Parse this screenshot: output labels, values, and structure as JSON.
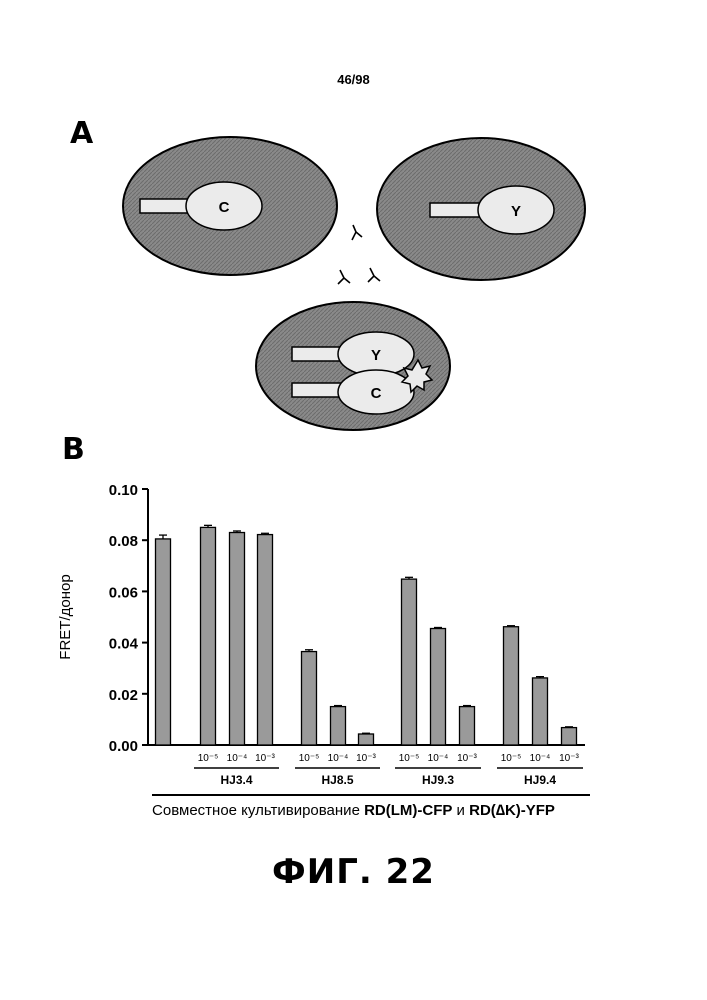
{
  "page_number": "46/98",
  "panel_a": {
    "label": "A",
    "cells": [
      {
        "receptor_label": "C"
      },
      {
        "receptor_label": "Y"
      },
      {
        "receptor_labels": [
          "Y",
          "C"
        ]
      }
    ],
    "colors": {
      "cell_fill": "#8a8a8a",
      "receptor_fill": "#ebebeb"
    }
  },
  "panel_b": {
    "label": "B",
    "caption_prefix": "Совместное культивирование ",
    "caption_part1": "RD(LM)-CFP",
    "caption_and": " и ",
    "caption_part2": "RD(∆K)-YFP"
  },
  "chart_data": {
    "type": "bar",
    "ylabel": "FRET/донор",
    "ylim": [
      0,
      0.1
    ],
    "yticks": [
      "0.00",
      "0.02",
      "0.04",
      "0.06",
      "0.08",
      "0.10"
    ],
    "bars": [
      {
        "value": 0.0805,
        "error": 0.0015,
        "tick": ""
      },
      {
        "value": 0.085,
        "error": 0.0008,
        "tick": "10⁻⁵"
      },
      {
        "value": 0.083,
        "error": 0.0006,
        "tick": "10⁻⁴"
      },
      {
        "value": 0.0822,
        "error": 0.0005,
        "tick": "10⁻³"
      },
      {
        "value": 0.0365,
        "error": 0.0007,
        "tick": "10⁻⁵"
      },
      {
        "value": 0.015,
        "error": 0.0004,
        "tick": "10⁻⁴"
      },
      {
        "value": 0.0043,
        "error": 0.0003,
        "tick": "10⁻³"
      },
      {
        "value": 0.0648,
        "error": 0.0007,
        "tick": "10⁻⁵"
      },
      {
        "value": 0.0455,
        "error": 0.0004,
        "tick": "10⁻⁴"
      },
      {
        "value": 0.015,
        "error": 0.0004,
        "tick": "10⁻³"
      },
      {
        "value": 0.0462,
        "error": 0.0004,
        "tick": "10⁻⁵"
      },
      {
        "value": 0.0262,
        "error": 0.0005,
        "tick": "10⁻⁴"
      },
      {
        "value": 0.0068,
        "error": 0.0003,
        "tick": "10⁻³"
      }
    ],
    "groups": [
      {
        "name": "HJ3.4",
        "bars": [
          1,
          2,
          3
        ]
      },
      {
        "name": "HJ8.5",
        "bars": [
          4,
          5,
          6
        ]
      },
      {
        "name": "HJ9.3",
        "bars": [
          7,
          8,
          9
        ]
      },
      {
        "name": "HJ9.4",
        "bars": [
          10,
          11,
          12
        ]
      }
    ],
    "grid": false,
    "colors": {
      "bar_fill": "#9a9a9a"
    }
  },
  "figure_caption": "ФИГ. 22"
}
